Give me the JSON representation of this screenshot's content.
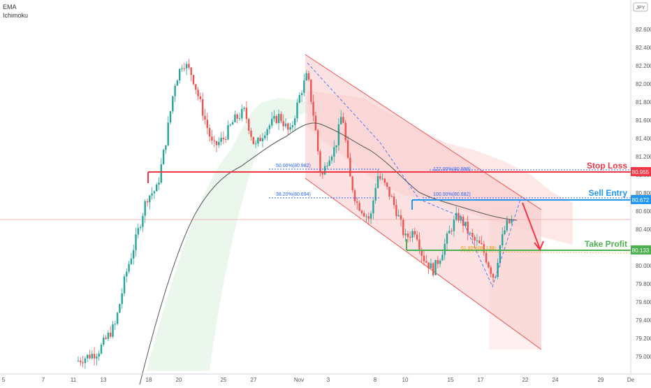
{
  "chart_data": {
    "type": "candlestick",
    "indicators": [
      "EMA",
      "Ichimoku"
    ],
    "currency": "JPY",
    "y_ticks": [
      "82.600",
      "82.400",
      "82.200",
      "82.000",
      "81.800",
      "81.600",
      "81.400",
      "81.200",
      "81.000",
      "80.800",
      "80.600",
      "80.400",
      "80.200",
      "80.000",
      "79.800",
      "79.600",
      "79.400",
      "79.200",
      "79.000"
    ],
    "x_ticks": [
      "5",
      "7",
      "11",
      "13",
      "18",
      "20",
      "25",
      "27",
      "Nov",
      "3",
      "8",
      "10",
      "15",
      "17",
      "22",
      "24",
      "29",
      "De"
    ],
    "levels": {
      "stop_loss": {
        "label": "Stop Loss",
        "value": "80.955"
      },
      "sell_entry": {
        "label": "Sell Entry",
        "value": "80.672"
      },
      "take_profit": {
        "label": "Take Profit",
        "value": "80.133"
      }
    },
    "fib_labels": [
      "50.00%(80.982)",
      "38.20%(80.694)",
      "127.00%(80.998)",
      "100.00%(80.682)",
      "61.80%(80.138)"
    ],
    "colors": {
      "up": "#26a69a",
      "down": "#ef5350",
      "stop": "#f23645",
      "entry": "#2196f3",
      "profit": "#4caf50"
    }
  }
}
